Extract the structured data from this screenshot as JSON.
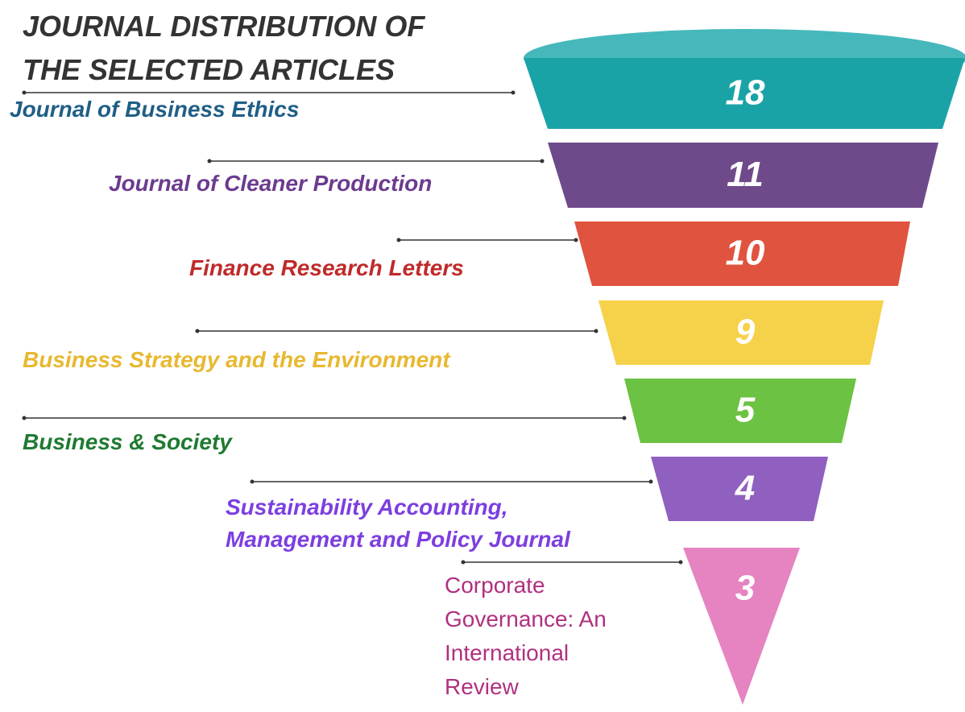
{
  "chart_data": {
    "type": "funnel",
    "title": "JOURNAL DISTRIBUTION OF THE SELECTED ARTICLES",
    "categories": [
      "Journal of Business Ethics",
      "Journal of Cleaner Production",
      "Finance Research Letters",
      "Business Strategy and the Environment",
      "Business & Society",
      "Sustainability Accounting, Management and Policy Journal",
      "Corporate Governance: An International Review"
    ],
    "values": [
      18,
      11,
      10,
      9,
      5,
      4,
      3
    ],
    "colors": [
      "#1aa3a6",
      "#6f4a8a",
      "#e0533f",
      "#f6d24b",
      "#6cc242",
      "#8f60bf",
      "#e683c1"
    ],
    "label_colors": [
      "#1f5e86",
      "#6c3b8f",
      "#c02a2a",
      "#e8b830",
      "#1f7a32",
      "#7c3fe0",
      "#b0307f"
    ]
  }
}
